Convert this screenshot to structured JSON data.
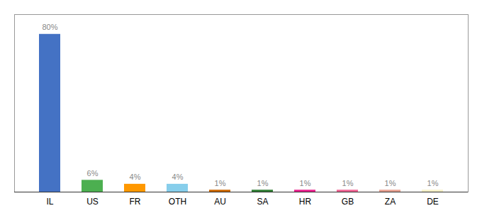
{
  "chart_data": {
    "type": "bar",
    "categories": [
      "IL",
      "US",
      "FR",
      "OTH",
      "AU",
      "SA",
      "HR",
      "GB",
      "ZA",
      "DE"
    ],
    "values": [
      80,
      6,
      4,
      4,
      1,
      1,
      1,
      1,
      1,
      1
    ],
    "value_labels": [
      "80%",
      "6%",
      "4%",
      "4%",
      "1%",
      "1%",
      "1%",
      "1%",
      "1%",
      "1%"
    ],
    "colors": [
      "#4472c4",
      "#4caf50",
      "#ff9800",
      "#87ceeb",
      "#cc6600",
      "#2e7d32",
      "#e91e8c",
      "#f06292",
      "#e8a090",
      "#f5f0c8"
    ],
    "data_labels": true,
    "ylim": [
      0,
      90
    ],
    "tick_labels": "x",
    "grid": false
  }
}
